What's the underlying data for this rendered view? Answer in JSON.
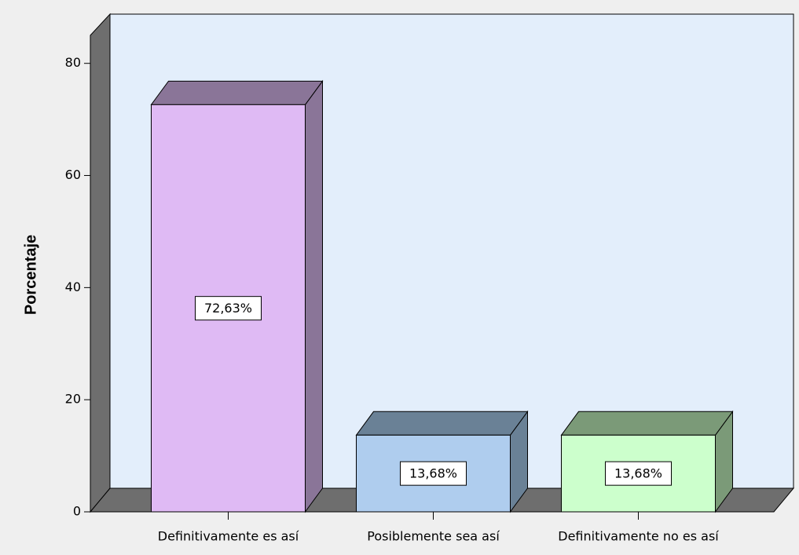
{
  "chart_data": {
    "type": "bar3d",
    "y_label": "Porcentaje",
    "categories": [
      "Definitivamente es así",
      "Posiblemente sea así",
      "Definitivamente no es así"
    ],
    "values": [
      72.63,
      13.68,
      13.68
    ],
    "value_labels": [
      "72,63%",
      "13,68%",
      "13,68%"
    ],
    "colors": [
      "#dfbaf4",
      "#afcdee",
      "#ccffcc"
    ],
    "side_colors": [
      "#8a7598",
      "#6a8196",
      "#7b9a78"
    ],
    "ylim": [
      0,
      85
    ],
    "yticks": [
      0,
      20,
      40,
      60,
      80
    ]
  }
}
